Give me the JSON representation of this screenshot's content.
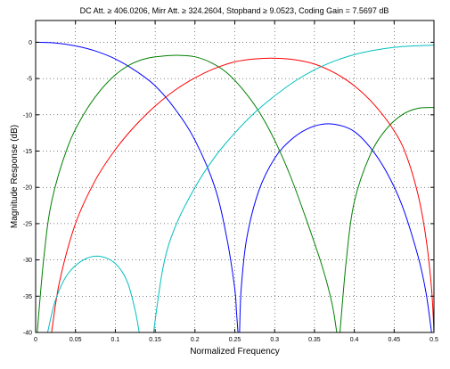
{
  "chart_data": {
    "type": "line",
    "title": "DC Att. ≥ 406.0206, Mirr Att. ≥ 324.2604, Stopband ≥ 9.0523, Coding Gain = 7.5697 dB",
    "xlabel": "Normalized Frequency",
    "ylabel": "Magnitude Response (dB)",
    "xlim": [
      0,
      0.5
    ],
    "ylim": [
      -40,
      3
    ],
    "xticks": [
      0,
      0.05,
      0.1,
      0.15,
      0.2,
      0.25,
      0.3,
      0.35,
      0.4,
      0.45,
      0.5
    ],
    "xtick_labels": [
      "0",
      "0.05",
      "0.1",
      "0.15",
      "0.2",
      "0.25",
      "0.3",
      "0.35",
      "0.4",
      "0.45",
      "0.5"
    ],
    "yticks": [
      0,
      -5,
      -10,
      -15,
      -20,
      -25,
      -30,
      -35,
      -40
    ],
    "ytick_labels": [
      "0",
      "-5",
      "-10",
      "-15",
      "-20",
      "-25",
      "-30",
      "-35",
      "-40"
    ],
    "grid": true,
    "grid_style": "dotted",
    "series": [
      {
        "color": "#0000ff",
        "segments": [
          [
            [
              0,
              0
            ],
            [
              0.025,
              -0.1
            ],
            [
              0.05,
              -0.5
            ],
            [
              0.075,
              -1.2
            ],
            [
              0.1,
              -2.3
            ],
            [
              0.125,
              -3.9
            ],
            [
              0.15,
              -6.0
            ],
            [
              0.175,
              -9.2
            ],
            [
              0.2,
              -13.5
            ],
            [
              0.225,
              -20.0
            ],
            [
              0.24,
              -27.0
            ],
            [
              0.25,
              -34.0
            ],
            [
              0.252,
              -37.0
            ],
            [
              0.254,
              -40.0
            ]
          ],
          [
            [
              0.256,
              -40.0
            ],
            [
              0.258,
              -34.0
            ],
            [
              0.265,
              -27.0
            ],
            [
              0.28,
              -20.5
            ],
            [
              0.3,
              -16.0
            ],
            [
              0.32,
              -13.5
            ],
            [
              0.34,
              -12.0
            ],
            [
              0.36,
              -11.3
            ],
            [
              0.38,
              -11.4
            ],
            [
              0.4,
              -12.3
            ],
            [
              0.42,
              -14.5
            ],
            [
              0.44,
              -17.8
            ],
            [
              0.46,
              -22.5
            ],
            [
              0.48,
              -29.5
            ],
            [
              0.49,
              -34.5
            ],
            [
              0.497,
              -40.0
            ]
          ]
        ]
      },
      {
        "color": "#008000",
        "segments": [
          [
            [
              0.002,
              -40.0
            ],
            [
              0.01,
              -30.0
            ],
            [
              0.02,
              -22.0
            ],
            [
              0.04,
              -14.5
            ],
            [
              0.06,
              -10.0
            ],
            [
              0.08,
              -6.8
            ],
            [
              0.1,
              -4.5
            ],
            [
              0.12,
              -3.0
            ],
            [
              0.14,
              -2.2
            ],
            [
              0.16,
              -1.9
            ],
            [
              0.18,
              -1.8
            ],
            [
              0.2,
              -2.0
            ],
            [
              0.22,
              -2.8
            ],
            [
              0.24,
              -4.2
            ],
            [
              0.26,
              -6.5
            ],
            [
              0.28,
              -9.5
            ],
            [
              0.3,
              -13.5
            ],
            [
              0.32,
              -18.5
            ],
            [
              0.34,
              -24.5
            ],
            [
              0.36,
              -31.0
            ],
            [
              0.372,
              -36.0
            ],
            [
              0.378,
              -40.0
            ]
          ],
          [
            [
              0.382,
              -40.0
            ],
            [
              0.39,
              -30.0
            ],
            [
              0.4,
              -22.0
            ],
            [
              0.42,
              -15.5
            ],
            [
              0.44,
              -12.0
            ],
            [
              0.46,
              -10.0
            ],
            [
              0.48,
              -9.1
            ],
            [
              0.5,
              -9.0
            ]
          ]
        ]
      },
      {
        "color": "#ff0000",
        "segments": [
          [
            [
              0.02,
              -40.0
            ],
            [
              0.03,
              -33.0
            ],
            [
              0.05,
              -25.0
            ],
            [
              0.075,
              -19.0
            ],
            [
              0.1,
              -14.8
            ],
            [
              0.125,
              -11.5
            ],
            [
              0.15,
              -8.8
            ],
            [
              0.175,
              -6.6
            ],
            [
              0.2,
              -4.9
            ],
            [
              0.225,
              -3.6
            ],
            [
              0.25,
              -2.7
            ],
            [
              0.275,
              -2.3
            ],
            [
              0.3,
              -2.2
            ],
            [
              0.325,
              -2.4
            ],
            [
              0.35,
              -3.0
            ],
            [
              0.375,
              -4.2
            ],
            [
              0.4,
              -6.0
            ],
            [
              0.425,
              -8.6
            ],
            [
              0.45,
              -12.2
            ],
            [
              0.465,
              -15.5
            ],
            [
              0.48,
              -21.0
            ],
            [
              0.49,
              -27.0
            ],
            [
              0.497,
              -34.0
            ],
            [
              0.5,
              -40.0
            ]
          ]
        ]
      },
      {
        "color": "#00bfbf",
        "segments": [
          [
            [
              0.015,
              -40.0
            ],
            [
              0.025,
              -35.5
            ],
            [
              0.04,
              -32.0
            ],
            [
              0.06,
              -30.0
            ],
            [
              0.08,
              -29.5
            ],
            [
              0.1,
              -30.5
            ],
            [
              0.115,
              -33.0
            ],
            [
              0.125,
              -37.0
            ],
            [
              0.13,
              -40.0
            ]
          ],
          [
            [
              0.148,
              -40.0
            ],
            [
              0.16,
              -31.0
            ],
            [
              0.175,
              -25.5
            ],
            [
              0.2,
              -20.0
            ],
            [
              0.225,
              -15.8
            ],
            [
              0.25,
              -12.5
            ],
            [
              0.275,
              -9.7
            ],
            [
              0.3,
              -7.4
            ],
            [
              0.325,
              -5.4
            ],
            [
              0.35,
              -3.8
            ],
            [
              0.375,
              -2.6
            ],
            [
              0.4,
              -1.7
            ],
            [
              0.425,
              -1.1
            ],
            [
              0.45,
              -0.7
            ],
            [
              0.475,
              -0.5
            ],
            [
              0.5,
              -0.4
            ]
          ]
        ]
      }
    ]
  }
}
